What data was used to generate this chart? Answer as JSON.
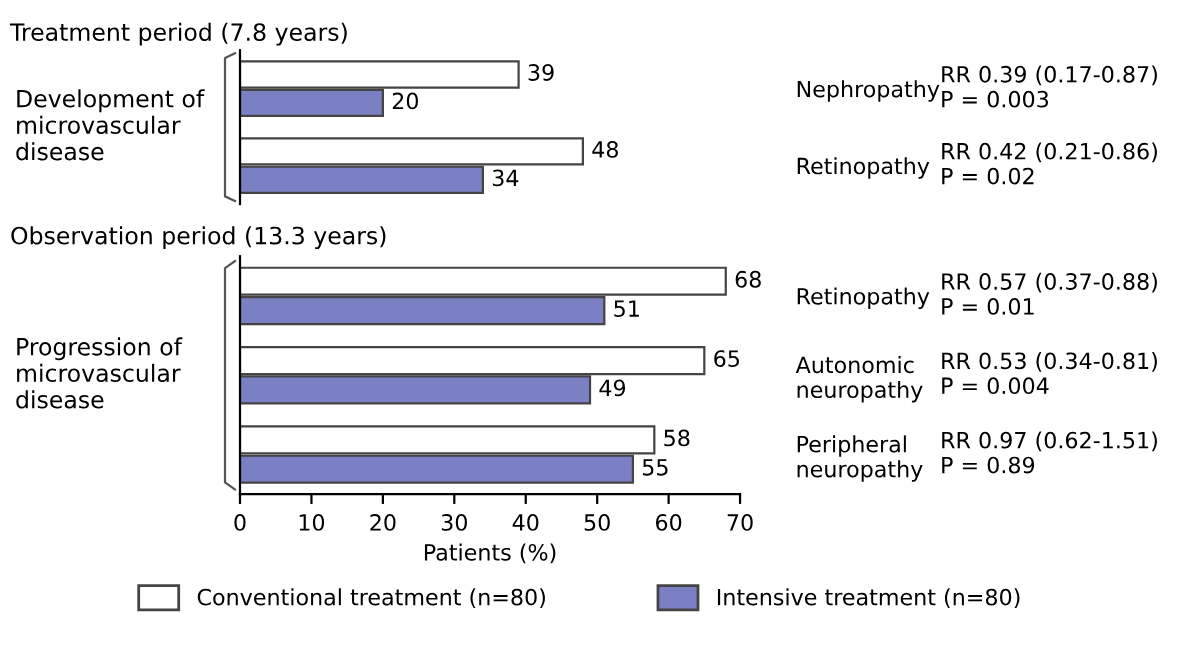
{
  "chart_data": [
    {
      "type": "bar",
      "orientation": "horizontal",
      "title": "Treatment period (7.8 years)",
      "ylabel": "Development of\nmicrovascular\ndisease",
      "categories": [
        "Nephropathy",
        "Retinopathy"
      ],
      "series": [
        {
          "color": "#ffffff",
          "values": [
            39,
            48
          ]
        },
        {
          "color": "#7b80c4",
          "values": [
            20,
            34
          ]
        }
      ],
      "xlim": [
        0,
        70
      ],
      "tick_labels": "y",
      "data_labels": true,
      "annotations": [
        "RR 0.39 (0.17-0.87)\nP = 0.003",
        "RR 0.42 (0.21-0.86)\nP = 0.02"
      ]
    },
    {
      "type": "bar",
      "orientation": "horizontal",
      "title": "Observation period (13.3 years)",
      "ylabel": "Progression of\nmicrovascular\ndisease",
      "xlabel": "Patients (%)",
      "categories": [
        "Retinopathy",
        "Autonomic\nneuropathy",
        "Peripheral\nneuropathy"
      ],
      "series": [
        {
          "name": "Conventional treatment (n=80)",
          "color": "#ffffff",
          "values": [
            68,
            65,
            58
          ]
        },
        {
          "name": "Intensive treatment (n=80)",
          "color": "#7b80c4",
          "values": [
            51,
            49,
            55
          ]
        }
      ],
      "xlim": [
        0,
        70
      ],
      "xticks": [
        0,
        10,
        20,
        30,
        40,
        50,
        60,
        70
      ],
      "data_labels": true,
      "legend": "bottom",
      "annotations": [
        "RR 0.57 (0.37-0.88)\nP = 0.01",
        "RR 0.53 (0.34-0.81)\nP = 0.004",
        "RR 0.97 (0.62-1.51)\nP = 0.89"
      ]
    }
  ]
}
